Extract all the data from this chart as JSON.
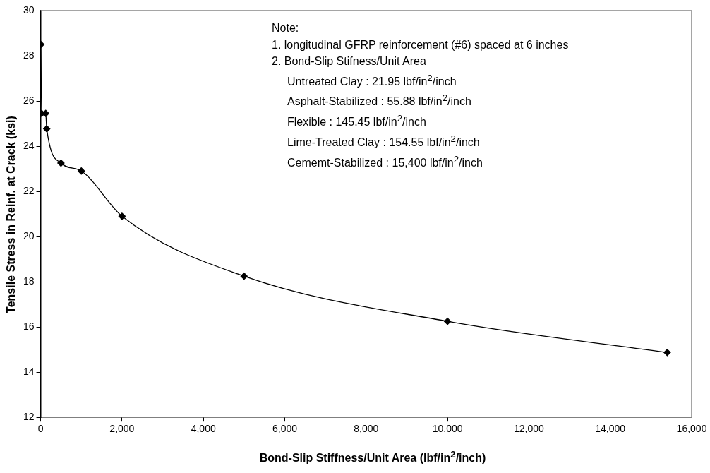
{
  "chart_data": {
    "type": "line",
    "xlabel": "Bond-Slip Stiffness/Unit Area (lbf/in$^{2}$/inch)",
    "ylabel": "Tensile Stress in Reinf. at Crack (ksi)",
    "x": [
      5,
      25,
      125,
      150,
      500,
      1000,
      2000,
      5000,
      10000,
      15400
    ],
    "series": [
      {
        "color": "#000000",
        "values": [
          28.5,
          25.45,
          25.45,
          24.77,
          23.25,
          22.9,
          20.9,
          18.25,
          16.25,
          14.87
        ]
      }
    ],
    "xlim": [
      0,
      16000
    ],
    "xticks": [
      {
        "value": 0,
        "label": "0"
      },
      {
        "value": 2000,
        "label": "2,000"
      },
      {
        "value": 4000,
        "label": "4,000"
      },
      {
        "value": 6000,
        "label": "6,000"
      },
      {
        "value": 8000,
        "label": "8,000"
      },
      {
        "value": 10000,
        "label": "10,000"
      },
      {
        "value": 12000,
        "label": "12,000"
      },
      {
        "value": 14000,
        "label": "14,000"
      },
      {
        "value": 16000,
        "label": "16,000"
      }
    ],
    "ylim": [
      12,
      30
    ],
    "yticks": [
      12,
      14,
      16,
      18,
      20,
      22,
      24,
      26,
      28,
      30
    ],
    "grid": false,
    "legend": false,
    "marker": "diamond",
    "line_style": "solid",
    "annotations": [
      "Note:",
      "1. longitudinal GFRP reinforcement (#6) spaced at 6 inches",
      "2. Bond-Slip Stifness/Unit Area",
      "Untreated Clay : 21.95 lbf/in$^{2}$/inch",
      "Asphalt-Stabilized : 55.88 lbf/in$^{2}$/inch",
      "Flexible : 145.45 lbf/in$^{2}$/inch",
      "Lime-Treated Clay : 154.55 lbf/in$^{2}$/inch",
      "Cememt-Stabilized : 15,400 lbf/in$^{2}$/inch"
    ]
  }
}
